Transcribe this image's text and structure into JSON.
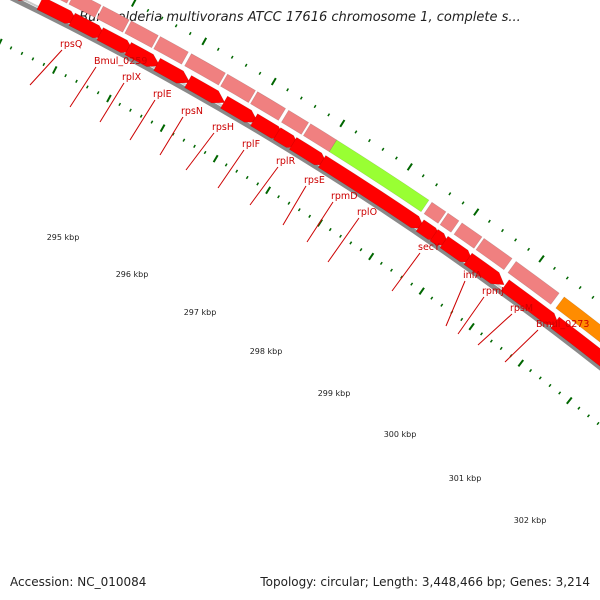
{
  "title": "Burkholderia multivorans ATCC 17616 chromosome 1, complete s...",
  "footer": {
    "accession": "Accession: NC_010084",
    "summary": "Topology: circular; Length: 3,448,466 bp; Genes: 3,214"
  },
  "colors": {
    "cds": "#ff0000",
    "gene": "#f08080",
    "highlight": "#99ff33",
    "orange": "#ff8c00",
    "label": "#cc0000",
    "tick": "#006600",
    "backbone": "#777777"
  },
  "axis": {
    "labels": [
      "295 kbp",
      "296 kbp",
      "297 kbp",
      "298 kbp",
      "299 kbp",
      "300 kbp",
      "301 kbp",
      "302 kbp"
    ]
  },
  "features": [
    {
      "label": "rpsQ"
    },
    {
      "label": "Bmul_0259"
    },
    {
      "label": "rplX"
    },
    {
      "label": "rplE"
    },
    {
      "label": "rpsN"
    },
    {
      "label": "rpsH"
    },
    {
      "label": "rplF"
    },
    {
      "label": "rplR"
    },
    {
      "label": "rpsE"
    },
    {
      "label": "rpmD"
    },
    {
      "label": "rplO"
    },
    {
      "label": "secY"
    },
    {
      "label": "infA"
    },
    {
      "label": "rpmJ"
    },
    {
      "label": "rpsM"
    },
    {
      "label": "Bmul_0273"
    }
  ]
}
